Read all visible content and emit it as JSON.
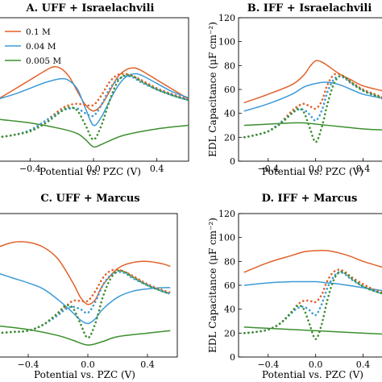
{
  "chart_data": [
    {
      "type": "line",
      "panel": "A",
      "title": "A. UFF + Israelachvili",
      "xlabel": "Potential vs. PZC (V)",
      "ylabel": "",
      "xlim": [
        -0.6,
        0.6
      ],
      "ylim": [
        0,
        120
      ],
      "x_ticks": [
        "−0.4",
        "0.0",
        "0.4"
      ],
      "y_ticks": [],
      "legend": {
        "placement": "top-left",
        "entries": [
          {
            "label": "0.1 M",
            "color": "#e0622a"
          },
          {
            "label": "0.04 M",
            "color": "#3d9ad8"
          },
          {
            "label": "0.005 M",
            "color": "#3c8f2e"
          }
        ]
      },
      "series": [
        {
          "color": "#e0622a",
          "style": "solid",
          "x": [
            -0.6,
            -0.5,
            -0.4,
            -0.3,
            -0.25,
            -0.2,
            -0.15,
            -0.1,
            -0.05,
            0,
            0.05,
            0.1,
            0.15,
            0.2,
            0.25,
            0.3,
            0.4,
            0.5,
            0.6
          ],
          "y": [
            52,
            60,
            68,
            76,
            79,
            77,
            70,
            58,
            47,
            42,
            47,
            58,
            70,
            76,
            78,
            76,
            68,
            60,
            52
          ]
        },
        {
          "color": "#3d9ad8",
          "style": "solid",
          "x": [
            -0.6,
            -0.5,
            -0.4,
            -0.3,
            -0.2,
            -0.15,
            -0.1,
            -0.05,
            0,
            0.05,
            0.1,
            0.15,
            0.2,
            0.25,
            0.3,
            0.4,
            0.5,
            0.6
          ],
          "y": [
            52,
            56,
            61,
            66,
            69,
            67,
            60,
            44,
            30,
            37,
            50,
            62,
            70,
            73,
            72,
            65,
            58,
            53
          ]
        },
        {
          "color": "#3c8f2e",
          "style": "solid",
          "x": [
            -0.6,
            -0.4,
            -0.2,
            -0.1,
            -0.05,
            0,
            0.05,
            0.1,
            0.2,
            0.4,
            0.6
          ],
          "y": [
            35,
            32,
            27,
            23,
            18,
            12,
            14,
            17,
            22,
            27,
            30
          ]
        },
        {
          "color": "#e0622a",
          "style": "dotted",
          "x": [
            -0.6,
            -0.5,
            -0.4,
            -0.3,
            -0.2,
            -0.15,
            -0.1,
            -0.05,
            0,
            0.05,
            0.1,
            0.15,
            0.2,
            0.25,
            0.3,
            0.4,
            0.5,
            0.6
          ],
          "y": [
            20,
            22,
            26,
            34,
            44,
            47,
            48,
            47,
            47,
            55,
            66,
            72,
            73,
            71,
            68,
            61,
            56,
            52
          ]
        },
        {
          "color": "#3d9ad8",
          "style": "dotted",
          "x": [
            -0.6,
            -0.5,
            -0.4,
            -0.3,
            -0.2,
            -0.15,
            -0.1,
            -0.05,
            0,
            0.05,
            0.1,
            0.15,
            0.2,
            0.25,
            0.3,
            0.4,
            0.5,
            0.6
          ],
          "y": [
            20,
            22,
            26,
            34,
            42,
            44,
            44,
            40,
            38,
            47,
            60,
            68,
            71,
            70,
            66,
            60,
            55,
            51
          ]
        },
        {
          "color": "#3c8f2e",
          "style": "dotted",
          "x": [
            -0.6,
            -0.5,
            -0.4,
            -0.3,
            -0.2,
            -0.15,
            -0.1,
            -0.05,
            0,
            0.05,
            0.1,
            0.15,
            0.2,
            0.25,
            0.3,
            0.4,
            0.5,
            0.6
          ],
          "y": [
            20,
            22,
            25,
            32,
            42,
            45,
            42,
            30,
            18,
            30,
            50,
            66,
            72,
            71,
            67,
            60,
            55,
            51
          ]
        }
      ]
    },
    {
      "type": "line",
      "panel": "B",
      "title": "B. IFF + Israelachvili",
      "xlabel": "Potential vs. PZC (V)",
      "ylabel": "EDL Capacitance (μF cm⁻²)",
      "xlim": [
        -0.65,
        0.6
      ],
      "ylim": [
        0,
        120
      ],
      "x_ticks": [
        "−0.4",
        "0.0",
        "0.4"
      ],
      "y_ticks": [
        "0",
        "20",
        "40",
        "60",
        "80",
        "100",
        "120"
      ],
      "series": [
        {
          "color": "#e0622a",
          "style": "solid",
          "x": [
            -0.6,
            -0.4,
            -0.2,
            -0.1,
            -0.05,
            0,
            0.05,
            0.1,
            0.2,
            0.3,
            0.4,
            0.6
          ],
          "y": [
            49,
            56,
            64,
            72,
            79,
            84,
            83,
            80,
            73,
            68,
            63,
            58
          ]
        },
        {
          "color": "#3d9ad8",
          "style": "solid",
          "x": [
            -0.6,
            -0.4,
            -0.2,
            -0.1,
            0,
            0.1,
            0.2,
            0.3,
            0.4,
            0.6
          ],
          "y": [
            42,
            48,
            56,
            62,
            65,
            66,
            64,
            60,
            56,
            52
          ]
        },
        {
          "color": "#3c8f2e",
          "style": "solid",
          "x": [
            -0.6,
            -0.4,
            -0.2,
            -0.1,
            0,
            0.2,
            0.4,
            0.6
          ],
          "y": [
            30,
            31,
            32,
            32,
            31,
            29,
            27,
            26
          ]
        },
        {
          "color": "#e0622a",
          "style": "dotted",
          "x": [
            -0.6,
            -0.5,
            -0.4,
            -0.3,
            -0.2,
            -0.15,
            -0.1,
            -0.05,
            0,
            0.05,
            0.1,
            0.15,
            0.2,
            0.25,
            0.3,
            0.4,
            0.5,
            0.6
          ],
          "y": [
            20,
            22,
            25,
            32,
            42,
            46,
            48,
            46,
            44,
            50,
            64,
            72,
            73,
            70,
            66,
            60,
            56,
            52
          ]
        },
        {
          "color": "#3d9ad8",
          "style": "dotted",
          "x": [
            -0.6,
            -0.5,
            -0.4,
            -0.3,
            -0.2,
            -0.15,
            -0.1,
            -0.05,
            0,
            0.05,
            0.1,
            0.15,
            0.2,
            0.25,
            0.3,
            0.4,
            0.5,
            0.6
          ],
          "y": [
            20,
            22,
            25,
            32,
            40,
            43,
            43,
            39,
            34,
            42,
            58,
            68,
            71,
            69,
            65,
            59,
            55,
            51
          ]
        },
        {
          "color": "#3c8f2e",
          "style": "dotted",
          "x": [
            -0.6,
            -0.5,
            -0.4,
            -0.3,
            -0.2,
            -0.15,
            -0.1,
            -0.05,
            0,
            0.05,
            0.1,
            0.15,
            0.2,
            0.25,
            0.3,
            0.4,
            0.5,
            0.6
          ],
          "y": [
            20,
            22,
            25,
            31,
            40,
            44,
            41,
            28,
            16,
            28,
            48,
            64,
            71,
            70,
            66,
            59,
            55,
            51
          ]
        }
      ]
    },
    {
      "type": "line",
      "panel": "C",
      "title": "C. UFF + Marcus",
      "xlabel": "Potential vs. PZC (V)",
      "ylabel": "",
      "xlim": [
        -0.6,
        0.6
      ],
      "ylim": [
        0,
        120
      ],
      "x_ticks": [
        "−0.4",
        "0.0",
        "0.4"
      ],
      "y_ticks": [],
      "series": [
        {
          "color": "#e0622a",
          "style": "solid",
          "x": [
            -0.6,
            -0.5,
            -0.4,
            -0.3,
            -0.2,
            -0.1,
            -0.05,
            0,
            0.05,
            0.1,
            0.2,
            0.3,
            0.4,
            0.5,
            0.55
          ],
          "y": [
            92,
            96,
            96,
            92,
            82,
            62,
            50,
            44,
            48,
            60,
            74,
            79,
            80,
            78,
            76
          ]
        },
        {
          "color": "#3d9ad8",
          "style": "solid",
          "x": [
            -0.6,
            -0.5,
            -0.4,
            -0.3,
            -0.2,
            -0.1,
            -0.05,
            0,
            0.05,
            0.1,
            0.2,
            0.3,
            0.4,
            0.5,
            0.55
          ],
          "y": [
            70,
            66,
            62,
            57,
            48,
            37,
            31,
            28,
            32,
            40,
            50,
            55,
            57,
            58,
            58
          ]
        },
        {
          "color": "#3c8f2e",
          "style": "solid",
          "x": [
            -0.6,
            -0.4,
            -0.2,
            -0.1,
            0,
            0.1,
            0.2,
            0.4,
            0.55
          ],
          "y": [
            26,
            23,
            18,
            14,
            10,
            13,
            17,
            20,
            22
          ]
        },
        {
          "color": "#e0622a",
          "style": "dotted",
          "x": [
            -0.6,
            -0.5,
            -0.4,
            -0.3,
            -0.2,
            -0.15,
            -0.1,
            -0.05,
            0,
            0.05,
            0.1,
            0.15,
            0.2,
            0.25,
            0.3,
            0.4,
            0.5,
            0.55
          ],
          "y": [
            20,
            21,
            22,
            27,
            36,
            42,
            47,
            47,
            47,
            55,
            66,
            72,
            73,
            71,
            68,
            61,
            56,
            54
          ]
        },
        {
          "color": "#3d9ad8",
          "style": "dotted",
          "x": [
            -0.6,
            -0.5,
            -0.4,
            -0.3,
            -0.2,
            -0.15,
            -0.1,
            -0.05,
            0,
            0.05,
            0.1,
            0.15,
            0.2,
            0.25,
            0.3,
            0.4,
            0.5,
            0.55
          ],
          "y": [
            20,
            21,
            22,
            27,
            35,
            40,
            42,
            40,
            37,
            46,
            60,
            68,
            71,
            70,
            66,
            60,
            55,
            53
          ]
        },
        {
          "color": "#3c8f2e",
          "style": "dotted",
          "x": [
            -0.6,
            -0.5,
            -0.4,
            -0.3,
            -0.2,
            -0.15,
            -0.1,
            -0.05,
            0,
            0.05,
            0.1,
            0.15,
            0.2,
            0.25,
            0.3,
            0.4,
            0.5,
            0.55
          ],
          "y": [
            20,
            21,
            22,
            27,
            37,
            43,
            41,
            28,
            16,
            28,
            50,
            65,
            72,
            71,
            67,
            60,
            55,
            53
          ]
        }
      ]
    },
    {
      "type": "line",
      "panel": "D",
      "title": "D. IFF + Marcus",
      "xlabel": "Potential vs. PZC (V)",
      "ylabel": "EDL Capacitance (μF cm⁻²)",
      "xlim": [
        -0.65,
        0.6
      ],
      "ylim": [
        0,
        120
      ],
      "x_ticks": [
        "−0.4",
        "0.0",
        "0.4"
      ],
      "y_ticks": [
        "0",
        "20",
        "40",
        "60",
        "80",
        "100",
        "120"
      ],
      "series": [
        {
          "color": "#e0622a",
          "style": "solid",
          "x": [
            -0.6,
            -0.4,
            -0.2,
            -0.1,
            0,
            0.1,
            0.2,
            0.3,
            0.4,
            0.6
          ],
          "y": [
            71,
            79,
            85,
            88,
            89,
            89,
            87,
            84,
            80,
            74
          ]
        },
        {
          "color": "#3d9ad8",
          "style": "solid",
          "x": [
            -0.6,
            -0.4,
            -0.2,
            -0.1,
            0,
            0.1,
            0.2,
            0.4,
            0.6
          ],
          "y": [
            60,
            62,
            63,
            63,
            63,
            62,
            61,
            58,
            55
          ]
        },
        {
          "color": "#3c8f2e",
          "style": "solid",
          "x": [
            -0.6,
            -0.4,
            -0.2,
            0,
            0.2,
            0.4,
            0.6
          ],
          "y": [
            25,
            24,
            23,
            22,
            21,
            20,
            19
          ]
        },
        {
          "color": "#e0622a",
          "style": "dotted",
          "x": [
            -0.6,
            -0.5,
            -0.4,
            -0.3,
            -0.2,
            -0.15,
            -0.1,
            -0.05,
            0,
            0.05,
            0.1,
            0.15,
            0.2,
            0.25,
            0.3,
            0.4,
            0.5,
            0.6
          ],
          "y": [
            20,
            21,
            23,
            28,
            38,
            44,
            47,
            47,
            46,
            52,
            64,
            71,
            73,
            71,
            67,
            61,
            56,
            53
          ]
        },
        {
          "color": "#3d9ad8",
          "style": "dotted",
          "x": [
            -0.6,
            -0.5,
            -0.4,
            -0.3,
            -0.2,
            -0.15,
            -0.1,
            -0.05,
            0,
            0.05,
            0.1,
            0.15,
            0.2,
            0.25,
            0.3,
            0.4,
            0.5,
            0.6
          ],
          "y": [
            20,
            21,
            23,
            28,
            37,
            41,
            42,
            39,
            35,
            44,
            58,
            67,
            71,
            69,
            65,
            59,
            55,
            52
          ]
        },
        {
          "color": "#3c8f2e",
          "style": "dotted",
          "x": [
            -0.6,
            -0.5,
            -0.4,
            -0.3,
            -0.2,
            -0.15,
            -0.1,
            -0.05,
            0,
            0.05,
            0.1,
            0.15,
            0.2,
            0.25,
            0.3,
            0.4,
            0.5,
            0.6
          ],
          "y": [
            20,
            21,
            23,
            28,
            38,
            43,
            40,
            27,
            15,
            27,
            48,
            64,
            71,
            70,
            66,
            59,
            55,
            52
          ]
        }
      ]
    }
  ]
}
